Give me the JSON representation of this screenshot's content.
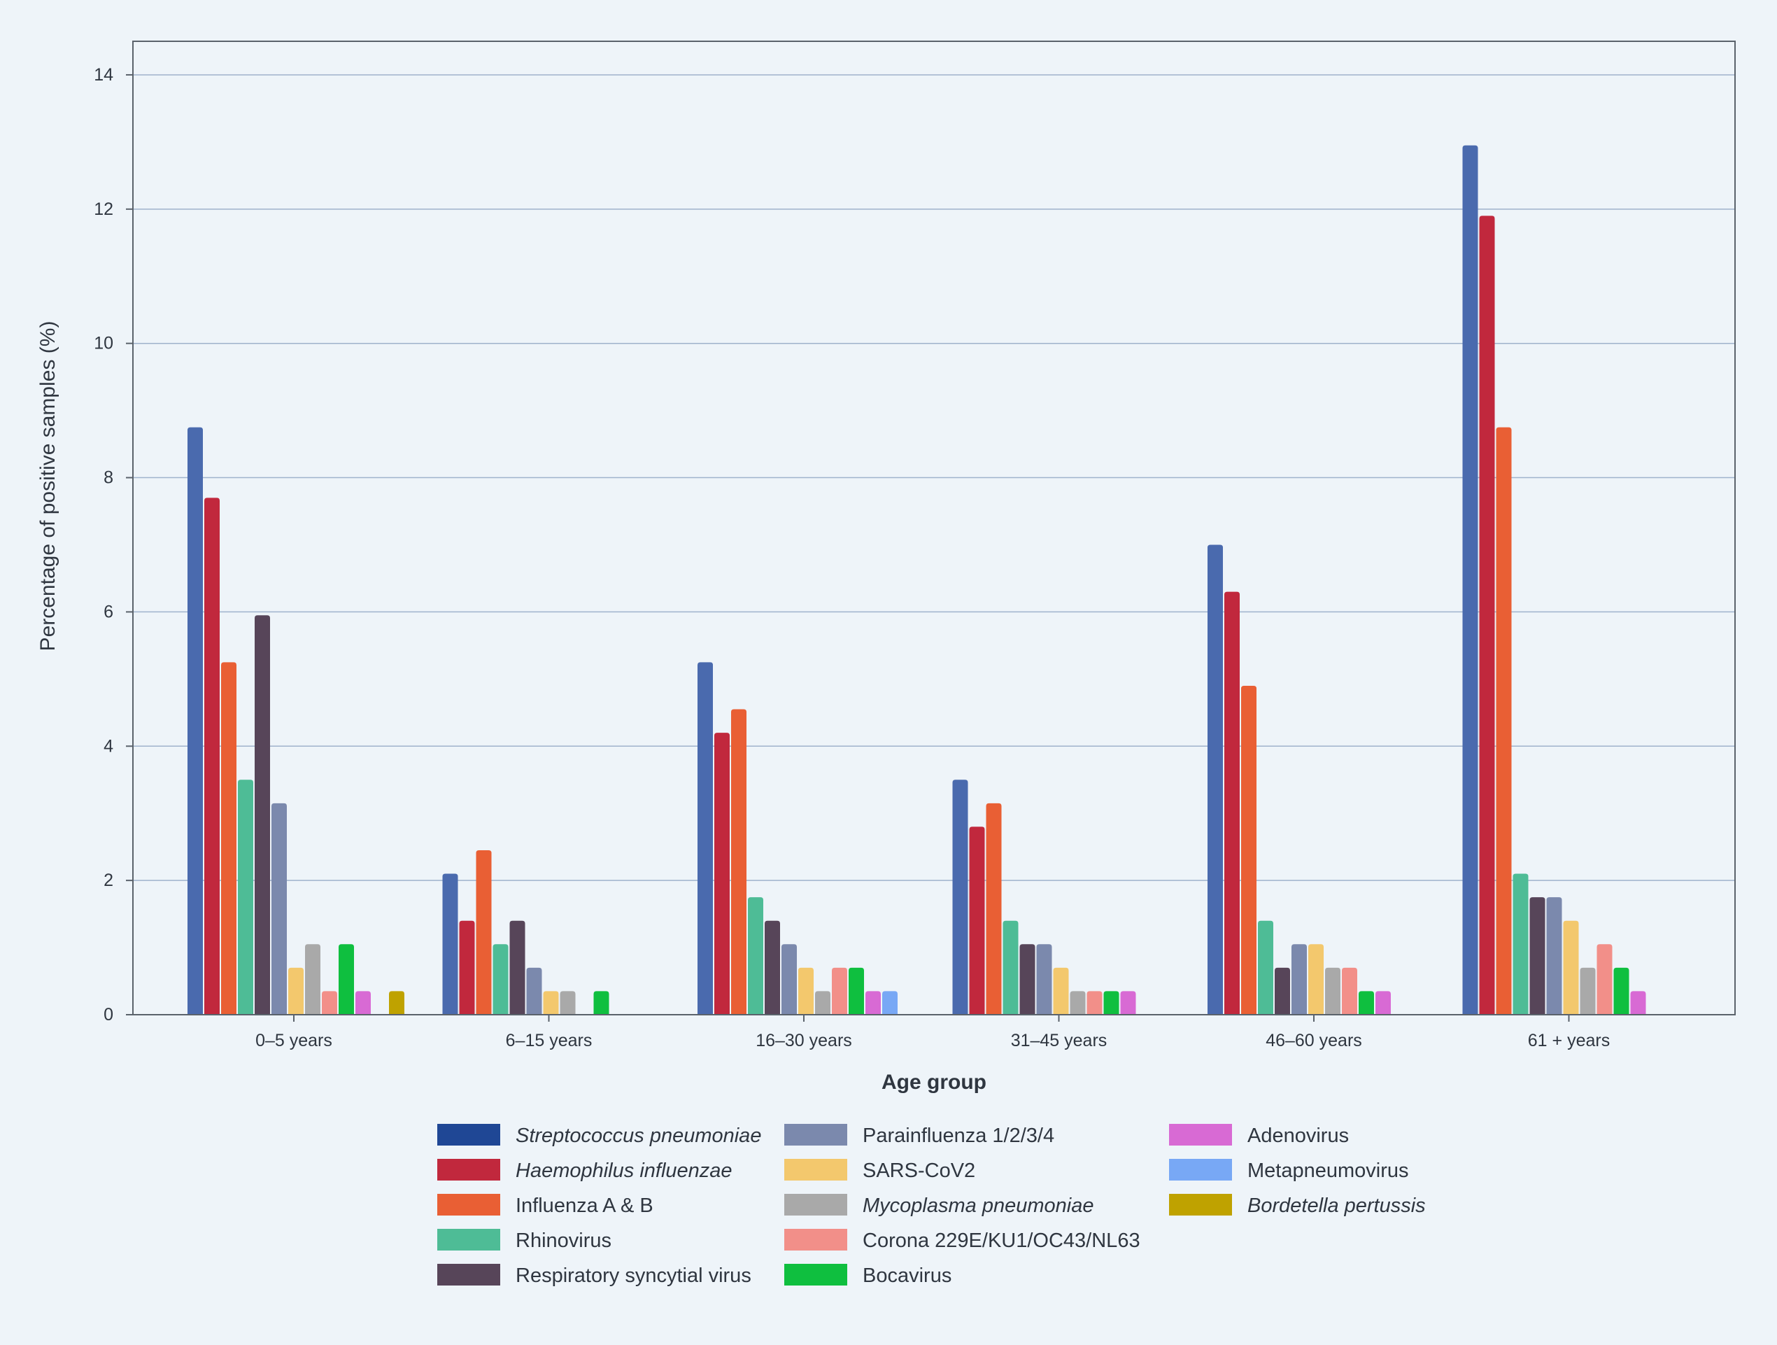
{
  "chart_data": {
    "type": "bar",
    "title": "",
    "xlabel": "Age group",
    "ylabel": "Percentage of positive samples (%)",
    "ylim": [
      0,
      14.5
    ],
    "yticks": [
      0,
      2,
      4,
      6,
      8,
      10,
      12,
      14
    ],
    "grid": true,
    "legend_position": "bottom",
    "categories": [
      "0–5 years",
      "6–15 years",
      "16–30 years",
      "31–45 years",
      "46–60 years",
      "61 + years"
    ],
    "series": [
      {
        "name": "Streptococcus pneumoniae",
        "italic": true,
        "color": "#4a6aae",
        "legend_color": "#1f4795",
        "values": [
          8.75,
          2.1,
          5.25,
          3.5,
          7.0,
          12.95
        ]
      },
      {
        "name": "Haemophilus influenzae",
        "italic": true,
        "color": "#c1283d",
        "values": [
          7.7,
          1.4,
          4.2,
          2.8,
          6.3,
          11.9
        ]
      },
      {
        "name": "Influenza A & B",
        "italic": false,
        "color": "#e95f34",
        "values": [
          5.25,
          2.45,
          4.55,
          3.15,
          4.9,
          8.75
        ]
      },
      {
        "name": "Rhinovirus",
        "italic": false,
        "color": "#4ebc96",
        "values": [
          3.5,
          1.05,
          1.75,
          1.4,
          1.4,
          2.1
        ]
      },
      {
        "name": "Respiratory syncytial virus",
        "italic": false,
        "color": "#574559",
        "values": [
          5.95,
          1.4,
          1.4,
          1.05,
          0.7,
          1.75
        ]
      },
      {
        "name": "Parainfluenza 1/2/3/4",
        "italic": false,
        "color": "#7b89ad",
        "values": [
          3.15,
          0.7,
          1.05,
          1.05,
          1.05,
          1.75
        ]
      },
      {
        "name": "SARS-CoV2",
        "italic": false,
        "color": "#f3c86d",
        "values": [
          0.7,
          0.35,
          0.7,
          0.7,
          1.05,
          1.4
        ]
      },
      {
        "name": "Mycoplasma pneumoniae",
        "italic": true,
        "color": "#a9a9a9",
        "values": [
          1.05,
          0.35,
          0.35,
          0.35,
          0.7,
          0.7
        ]
      },
      {
        "name": "Corona 229E/KU1/OC43/NL63",
        "italic": false,
        "color": "#f28f89",
        "values": [
          0.35,
          0,
          0.7,
          0.35,
          0.7,
          1.05
        ]
      },
      {
        "name": "Bocavirus",
        "italic": false,
        "color": "#0fbf3f",
        "values": [
          1.05,
          0.35,
          0.7,
          0.35,
          0.35,
          0.7
        ]
      },
      {
        "name": "Adenovirus",
        "italic": false,
        "color": "#d86ad4",
        "values": [
          0.35,
          0,
          0.35,
          0.35,
          0.35,
          0.35
        ]
      },
      {
        "name": "Metapneumovirus",
        "italic": false,
        "color": "#78a8f5",
        "values": [
          0,
          0,
          0.35,
          0,
          0,
          0
        ]
      },
      {
        "name": "Bordetella pertussis",
        "italic": true,
        "color": "#bfa200",
        "values": [
          0.35,
          0,
          0,
          0,
          0,
          0
        ]
      }
    ]
  }
}
